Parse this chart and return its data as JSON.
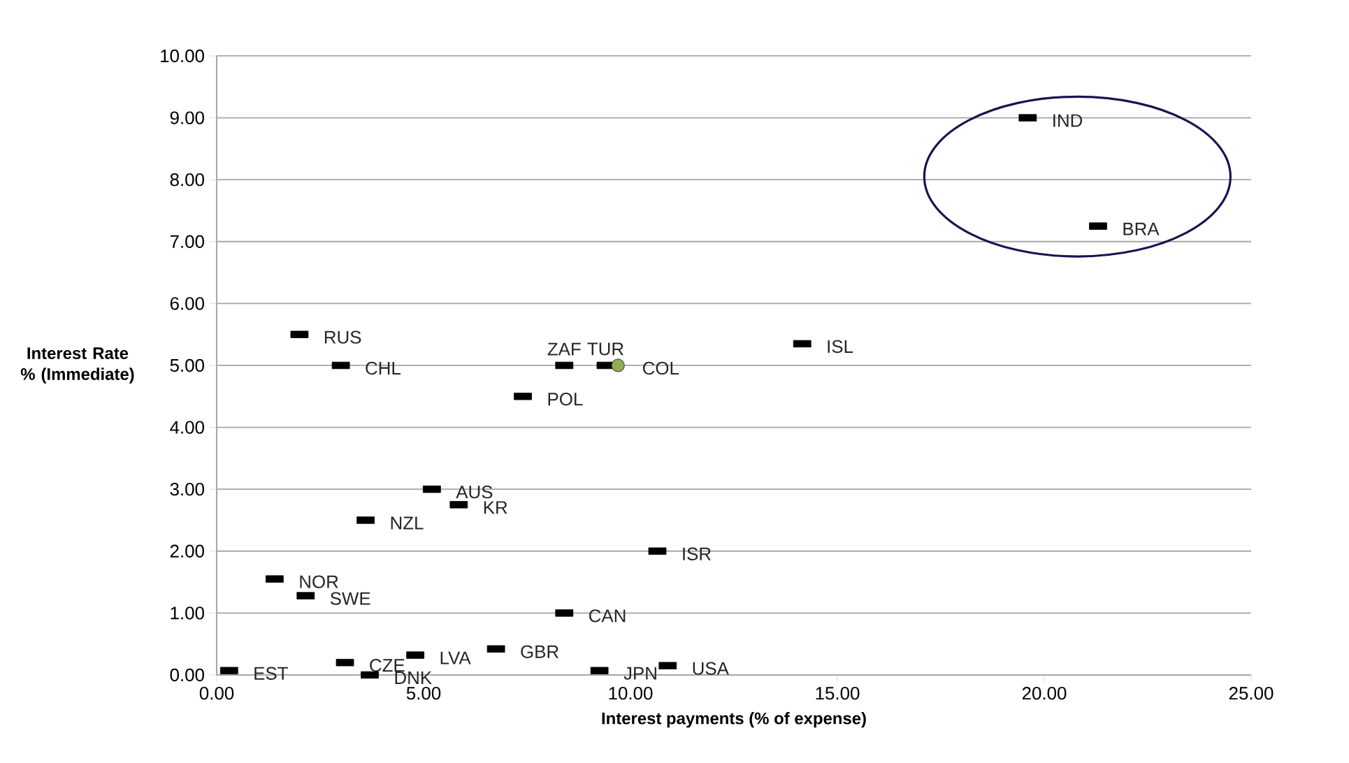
{
  "chart_data": {
    "type": "scatter",
    "xlabel": "Interest payments (% of expense)",
    "ylabel": "Interest Rate % (Immediate)",
    "xlim": [
      0,
      25
    ],
    "ylim": [
      0,
      10
    ],
    "xticks": [
      {
        "value": 0,
        "label": "0.00"
      },
      {
        "value": 5,
        "label": "5.00"
      },
      {
        "value": 10,
        "label": "10.00"
      },
      {
        "value": 15,
        "label": "15.00"
      },
      {
        "value": 20,
        "label": "20.00"
      },
      {
        "value": 25,
        "label": "25.00"
      }
    ],
    "yticks": [
      {
        "value": 0,
        "label": "0.00"
      },
      {
        "value": 1,
        "label": "1.00"
      },
      {
        "value": 2,
        "label": "2.00"
      },
      {
        "value": 3,
        "label": "3.00"
      },
      {
        "value": 4,
        "label": "4.00"
      },
      {
        "value": 5,
        "label": "5.00"
      },
      {
        "value": 6,
        "label": "6.00"
      },
      {
        "value": 7,
        "label": "7.00"
      },
      {
        "value": 8,
        "label": "8.00"
      },
      {
        "value": 9,
        "label": "9.00"
      },
      {
        "value": 10,
        "label": "10.00"
      }
    ],
    "grid": "y",
    "series": [
      {
        "color": "#000000",
        "marker": "square",
        "x": [
          0.3,
          2.0,
          3.0,
          1.4,
          2.15,
          3.1,
          3.7,
          4.8,
          5.2,
          5.85,
          3.6,
          6.75,
          7.4,
          8.4,
          8.4,
          9.4,
          9.25,
          10.9,
          10.65,
          14.15,
          19.6,
          21.3
        ],
        "values": [
          0.07,
          5.5,
          5.0,
          1.55,
          1.28,
          0.2,
          0.0,
          0.32,
          3.0,
          2.75,
          2.5,
          0.42,
          4.5,
          5.0,
          1.0,
          5.0,
          0.07,
          0.15,
          2.0,
          5.35,
          9.0,
          7.25
        ]
      },
      {
        "color": "#8fae4f",
        "marker": "circle",
        "x": [
          9.7
        ],
        "values": [
          5.0
        ]
      }
    ],
    "annotations": [
      {
        "text": "EST",
        "x": 0.3,
        "y": 0.07
      },
      {
        "text": "RUS",
        "x": 2.0,
        "y": 5.5
      },
      {
        "text": "CHL",
        "x": 3.0,
        "y": 5.0
      },
      {
        "text": "NOR",
        "x": 1.4,
        "y": 1.55
      },
      {
        "text": "SWE",
        "x": 2.15,
        "y": 1.28
      },
      {
        "text": "CZE",
        "x": 3.1,
        "y": 0.2
      },
      {
        "text": "DNK",
        "x": 3.7,
        "y": 0.0
      },
      {
        "text": "LVA",
        "x": 4.8,
        "y": 0.32
      },
      {
        "text": "AUS",
        "x": 5.2,
        "y": 3.0
      },
      {
        "text": "KR",
        "x": 5.85,
        "y": 2.75
      },
      {
        "text": "NZL",
        "x": 3.6,
        "y": 2.5
      },
      {
        "text": "GBR",
        "x": 6.75,
        "y": 0.42
      },
      {
        "text": "POL",
        "x": 7.4,
        "y": 4.5
      },
      {
        "text": "ZAF",
        "x": 8.4,
        "y": 5.0
      },
      {
        "text": "CAN",
        "x": 8.4,
        "y": 1.0
      },
      {
        "text": "TUR",
        "x": 9.4,
        "y": 5.0
      },
      {
        "text": "JPN",
        "x": 9.25,
        "y": 0.07
      },
      {
        "text": "USA",
        "x": 10.9,
        "y": 0.15
      },
      {
        "text": "ISR",
        "x": 10.65,
        "y": 2.0
      },
      {
        "text": "ISL",
        "x": 14.15,
        "y": 5.35
      },
      {
        "text": "IND",
        "x": 19.6,
        "y": 9.0
      },
      {
        "text": "BRA",
        "x": 21.3,
        "y": 7.25
      },
      {
        "text": "COL",
        "x": 9.7,
        "y": 5.0
      }
    ]
  }
}
